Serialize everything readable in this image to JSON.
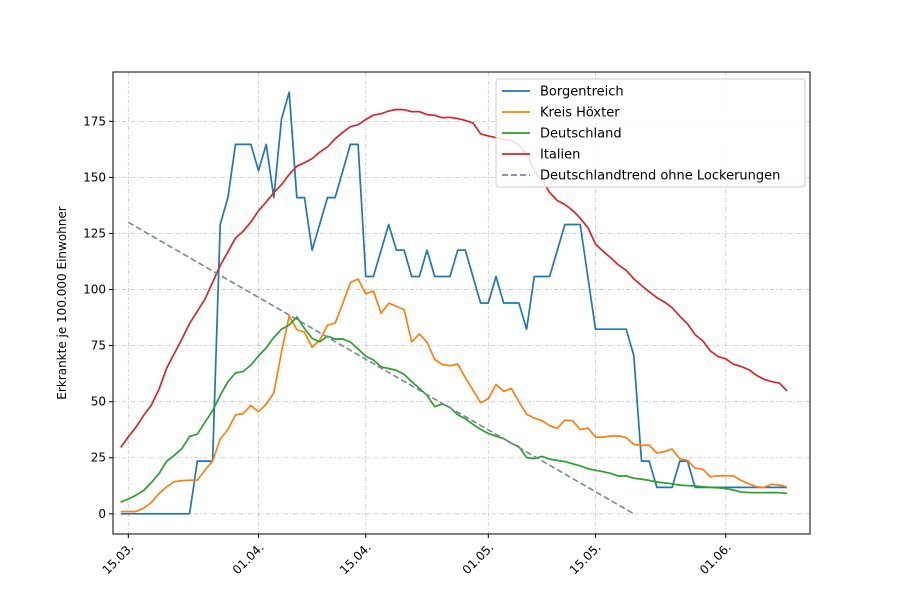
{
  "chart_data": {
    "type": "line",
    "title": "",
    "xlabel": "",
    "ylabel": "Erkrankte je 100.000 Einwohner",
    "x_domain": [
      0,
      86
    ],
    "xlim": [
      -2,
      89
    ],
    "ylim": [
      -9,
      197
    ],
    "grid": true,
    "legend_position": "top-right",
    "x_ticks": [
      {
        "x": 0,
        "label": "15.03."
      },
      {
        "x": 17,
        "label": "01.04."
      },
      {
        "x": 31,
        "label": "15.04."
      },
      {
        "x": 47,
        "label": "01.05."
      },
      {
        "x": 61,
        "label": "15.05."
      },
      {
        "x": 78,
        "label": "01.06."
      }
    ],
    "y_ticks": [
      0,
      25,
      50,
      75,
      100,
      125,
      150,
      175
    ],
    "series": [
      {
        "name": "Borgentreich",
        "color": "#1f77b4",
        "dashed": false,
        "points": [
          [
            -1,
            0
          ],
          [
            8,
            0
          ],
          [
            9,
            23.5
          ],
          [
            11,
            23.5
          ],
          [
            12,
            129
          ],
          [
            13,
            141
          ],
          [
            14,
            164.7
          ],
          [
            16,
            164.7
          ],
          [
            17,
            153
          ],
          [
            18,
            164.7
          ],
          [
            19,
            141
          ],
          [
            20,
            176
          ],
          [
            21,
            188
          ],
          [
            22,
            141
          ],
          [
            23,
            141
          ],
          [
            24,
            117.6
          ],
          [
            26,
            141
          ],
          [
            27,
            141
          ],
          [
            29,
            164.7
          ],
          [
            30,
            164.7
          ],
          [
            31,
            105.8
          ],
          [
            32,
            105.8
          ],
          [
            34,
            129
          ],
          [
            35,
            117.6
          ],
          [
            36,
            117.6
          ],
          [
            37,
            105.8
          ],
          [
            38,
            105.8
          ],
          [
            39,
            117.6
          ],
          [
            40,
            105.8
          ],
          [
            42,
            105.8
          ],
          [
            43,
            117.6
          ],
          [
            44,
            117.6
          ],
          [
            46,
            94
          ],
          [
            47,
            94
          ],
          [
            48,
            105.8
          ],
          [
            49,
            94
          ],
          [
            51,
            94
          ],
          [
            52,
            82.3
          ],
          [
            53,
            105.8
          ],
          [
            55,
            105.8
          ],
          [
            57,
            129
          ],
          [
            59,
            129
          ],
          [
            61,
            82.3
          ],
          [
            65,
            82.3
          ],
          [
            66,
            70.6
          ],
          [
            67,
            23.5
          ],
          [
            68,
            23.5
          ],
          [
            69,
            11.8
          ],
          [
            71,
            11.8
          ],
          [
            72,
            23.5
          ],
          [
            73,
            23.5
          ],
          [
            74,
            11.8
          ],
          [
            86,
            11.8
          ]
        ]
      },
      {
        "name": "Kreis Höxter",
        "color": "#ff7f0e",
        "dashed": false,
        "points": [
          [
            -1,
            1
          ],
          [
            0,
            1
          ],
          [
            1,
            1
          ],
          [
            2,
            2.5
          ],
          [
            3,
            5
          ],
          [
            4,
            9
          ],
          [
            5,
            12
          ],
          [
            6,
            14.3
          ],
          [
            7,
            14.8
          ],
          [
            8,
            15
          ],
          [
            9,
            15
          ],
          [
            10,
            19.5
          ],
          [
            11,
            23.5
          ],
          [
            12,
            33.3
          ],
          [
            13,
            37.6
          ],
          [
            14,
            44.1
          ],
          [
            15,
            44.7
          ],
          [
            16,
            48.3
          ],
          [
            17,
            45.5
          ],
          [
            18,
            48.9
          ],
          [
            19,
            53.9
          ],
          [
            20,
            72.1
          ],
          [
            21,
            88.3
          ],
          [
            22,
            82.2
          ],
          [
            23,
            81
          ],
          [
            24,
            74.3
          ],
          [
            25,
            77.5
          ],
          [
            26,
            84.1
          ],
          [
            27,
            85
          ],
          [
            28,
            93.8
          ],
          [
            29,
            103.1
          ],
          [
            30,
            104.7
          ],
          [
            31,
            98.1
          ],
          [
            32,
            99.4
          ],
          [
            33,
            89.4
          ],
          [
            34,
            93.9
          ],
          [
            35,
            92.5
          ],
          [
            36,
            91
          ],
          [
            37,
            76.7
          ],
          [
            38,
            80.2
          ],
          [
            39,
            76.5
          ],
          [
            40,
            68.8
          ],
          [
            41,
            66.6
          ],
          [
            42,
            66
          ],
          [
            43,
            66.8
          ],
          [
            44,
            60.7
          ],
          [
            45,
            55.1
          ],
          [
            46,
            49.5
          ],
          [
            47,
            51.3
          ],
          [
            48,
            57.7
          ],
          [
            49,
            54.6
          ],
          [
            50,
            55.9
          ],
          [
            51,
            50
          ],
          [
            52,
            44.4
          ],
          [
            53,
            42.7
          ],
          [
            54,
            41.5
          ],
          [
            55,
            39.3
          ],
          [
            56,
            38.1
          ],
          [
            57,
            41.8
          ],
          [
            58,
            41.5
          ],
          [
            59,
            37.5
          ],
          [
            60,
            38.3
          ],
          [
            61,
            34.2
          ],
          [
            62,
            34.2
          ],
          [
            63,
            34.7
          ],
          [
            64,
            34.7
          ],
          [
            65,
            34
          ],
          [
            66,
            31
          ],
          [
            67,
            30.5
          ],
          [
            68,
            30.6
          ],
          [
            69,
            27.1
          ],
          [
            70,
            27.7
          ],
          [
            71,
            28.9
          ],
          [
            72,
            24.5
          ],
          [
            73,
            23.8
          ],
          [
            74,
            20.3
          ],
          [
            75,
            19.9
          ],
          [
            76,
            16.5
          ],
          [
            77,
            16.9
          ],
          [
            78,
            17
          ],
          [
            79,
            16.9
          ],
          [
            80,
            14.9
          ],
          [
            81,
            13.4
          ],
          [
            82,
            12.1
          ],
          [
            83,
            11.8
          ],
          [
            84,
            13.2
          ],
          [
            85,
            12.8
          ],
          [
            86,
            12
          ]
        ]
      },
      {
        "name": "Deutschland",
        "color": "#2ca02c",
        "dashed": false,
        "points": [
          [
            -1,
            5.2
          ],
          [
            0,
            6.6
          ],
          [
            1,
            8.3
          ],
          [
            2,
            10.4
          ],
          [
            3,
            13.9
          ],
          [
            4,
            17.9
          ],
          [
            5,
            23.4
          ],
          [
            6,
            26.1
          ],
          [
            7,
            29.1
          ],
          [
            8,
            34.5
          ],
          [
            9,
            35.5
          ],
          [
            10,
            40.8
          ],
          [
            11,
            46
          ],
          [
            12,
            52.8
          ],
          [
            13,
            58.9
          ],
          [
            14,
            62.8
          ],
          [
            15,
            63.5
          ],
          [
            16,
            66.3
          ],
          [
            17,
            70.4
          ],
          [
            18,
            74
          ],
          [
            19,
            78.6
          ],
          [
            20,
            82.3
          ],
          [
            21,
            84.2
          ],
          [
            22,
            87.8
          ],
          [
            23,
            82.6
          ],
          [
            24,
            78.2
          ],
          [
            25,
            76.7
          ],
          [
            26,
            79.2
          ],
          [
            27,
            77.9
          ],
          [
            28,
            78
          ],
          [
            29,
            76.6
          ],
          [
            30,
            73.5
          ],
          [
            31,
            70.3
          ],
          [
            32,
            68.6
          ],
          [
            33,
            65.5
          ],
          [
            34,
            64.8
          ],
          [
            35,
            64
          ],
          [
            36,
            62.1
          ],
          [
            37,
            58.9
          ],
          [
            38,
            55.9
          ],
          [
            39,
            52.8
          ],
          [
            40,
            47.8
          ],
          [
            41,
            48.9
          ],
          [
            42,
            47.4
          ],
          [
            43,
            44.2
          ],
          [
            44,
            42.4
          ],
          [
            45,
            39.9
          ],
          [
            46,
            37.7
          ],
          [
            47,
            35.8
          ],
          [
            48,
            34.6
          ],
          [
            49,
            33.6
          ],
          [
            50,
            31.5
          ],
          [
            51,
            29.9
          ],
          [
            52,
            25.1
          ],
          [
            53,
            24.6
          ],
          [
            54,
            25.6
          ],
          [
            55,
            24.4
          ],
          [
            56,
            23.8
          ],
          [
            57,
            23.3
          ],
          [
            58,
            22.3
          ],
          [
            59,
            21.4
          ],
          [
            60,
            20.1
          ],
          [
            61,
            19.4
          ],
          [
            62,
            18.8
          ],
          [
            63,
            18
          ],
          [
            64,
            16.8
          ],
          [
            65,
            16.9
          ],
          [
            66,
            15.9
          ],
          [
            67,
            15.5
          ],
          [
            68,
            14.9
          ],
          [
            69,
            14.2
          ],
          [
            70,
            13.8
          ],
          [
            71,
            13.4
          ],
          [
            72,
            12.8
          ],
          [
            73,
            12.6
          ],
          [
            74,
            12.4
          ],
          [
            75,
            12.1
          ],
          [
            76,
            11.8
          ],
          [
            77,
            11.6
          ],
          [
            78,
            11.2
          ],
          [
            79,
            10.6
          ],
          [
            80,
            9.7
          ],
          [
            81,
            9.5
          ],
          [
            82,
            9.4
          ],
          [
            83,
            9.4
          ],
          [
            84,
            9.5
          ],
          [
            85,
            9.4
          ],
          [
            86,
            9.1
          ]
        ]
      },
      {
        "name": "Italien",
        "color": "#d62728",
        "dashed": false,
        "points": [
          [
            -1,
            29.6
          ],
          [
            0,
            34.3
          ],
          [
            1,
            38.6
          ],
          [
            2,
            43.9
          ],
          [
            3,
            48.4
          ],
          [
            4,
            55.5
          ],
          [
            5,
            64.9
          ],
          [
            6,
            71.5
          ],
          [
            7,
            77.9
          ],
          [
            8,
            84.9
          ],
          [
            9,
            90.3
          ],
          [
            10,
            95.7
          ],
          [
            11,
            103.2
          ],
          [
            12,
            110.7
          ],
          [
            13,
            116.8
          ],
          [
            14,
            123
          ],
          [
            15,
            126
          ],
          [
            16,
            130.1
          ],
          [
            17,
            135.1
          ],
          [
            18,
            139.1
          ],
          [
            19,
            143.2
          ],
          [
            20,
            146.8
          ],
          [
            21,
            151.3
          ],
          [
            22,
            155
          ],
          [
            23,
            156.5
          ],
          [
            24,
            158.4
          ],
          [
            25,
            161.3
          ],
          [
            26,
            163.6
          ],
          [
            27,
            167.2
          ],
          [
            28,
            170.1
          ],
          [
            29,
            172.6
          ],
          [
            30,
            173.5
          ],
          [
            31,
            175.8
          ],
          [
            32,
            177.8
          ],
          [
            33,
            178.4
          ],
          [
            34,
            179.6
          ],
          [
            35,
            180.3
          ],
          [
            36,
            180.2
          ],
          [
            37,
            179.3
          ],
          [
            38,
            179.3
          ],
          [
            39,
            178
          ],
          [
            40,
            177.7
          ],
          [
            41,
            176.6
          ],
          [
            42,
            176.8
          ],
          [
            43,
            176.2
          ],
          [
            44,
            175.4
          ],
          [
            45,
            174.3
          ],
          [
            46,
            169.4
          ],
          [
            47,
            168.5
          ],
          [
            48,
            167.7
          ],
          [
            49,
            166.9
          ],
          [
            50,
            166.5
          ],
          [
            51,
            164.5
          ],
          [
            52,
            160.5
          ],
          [
            53,
            153.3
          ],
          [
            54,
            148.9
          ],
          [
            55,
            143.3
          ],
          [
            56,
            139.7
          ],
          [
            57,
            137.9
          ],
          [
            58,
            135.3
          ],
          [
            59,
            131.8
          ],
          [
            60,
            127.6
          ],
          [
            61,
            120.3
          ],
          [
            62,
            117
          ],
          [
            63,
            114.1
          ],
          [
            64,
            110.9
          ],
          [
            65,
            108.6
          ],
          [
            66,
            104.8
          ],
          [
            67,
            101.8
          ],
          [
            68,
            99
          ],
          [
            69,
            96.4
          ],
          [
            70,
            94.4
          ],
          [
            71,
            91.9
          ],
          [
            72,
            88.1
          ],
          [
            73,
            84.7
          ],
          [
            74,
            79.9
          ],
          [
            75,
            77.1
          ],
          [
            76,
            72.6
          ],
          [
            77,
            70.1
          ],
          [
            78,
            69.1
          ],
          [
            79,
            66.7
          ],
          [
            80,
            65.7
          ],
          [
            81,
            64.3
          ],
          [
            82,
            61.8
          ],
          [
            83,
            60
          ],
          [
            84,
            58.9
          ],
          [
            85,
            58.3
          ],
          [
            86,
            54.8
          ]
        ]
      },
      {
        "name": "Deutschlandtrend ohne Lockerungen",
        "color": "#778899",
        "dashed": true,
        "points": [
          [
            0,
            130
          ],
          [
            66,
            0
          ]
        ]
      }
    ]
  }
}
